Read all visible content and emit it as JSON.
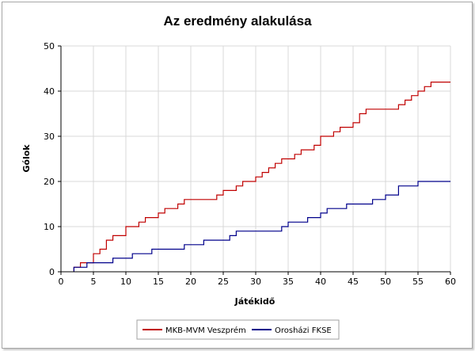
{
  "chart_data": {
    "type": "line",
    "step": true,
    "title": "Az eredmény alakulása",
    "xlabel": "Játékidő",
    "ylabel": "Gólok",
    "xlim": [
      0,
      60
    ],
    "ylim": [
      0,
      50
    ],
    "xticks": [
      0,
      5,
      10,
      15,
      20,
      25,
      30,
      35,
      40,
      45,
      50,
      55,
      60
    ],
    "yticks": [
      0,
      10,
      20,
      30,
      40,
      50
    ],
    "grid": true,
    "legend_position": "bottom",
    "series": [
      {
        "name": "MKB-MVM Veszprém",
        "color": "#c00000",
        "points": [
          [
            2,
            0
          ],
          [
            2,
            1
          ],
          [
            3,
            1
          ],
          [
            3,
            2
          ],
          [
            5,
            2
          ],
          [
            5,
            4
          ],
          [
            6,
            4
          ],
          [
            6,
            5
          ],
          [
            7,
            5
          ],
          [
            7,
            7
          ],
          [
            8,
            7
          ],
          [
            8,
            8
          ],
          [
            10,
            8
          ],
          [
            10,
            10
          ],
          [
            12,
            10
          ],
          [
            12,
            11
          ],
          [
            13,
            11
          ],
          [
            13,
            12
          ],
          [
            15,
            12
          ],
          [
            15,
            13
          ],
          [
            16,
            13
          ],
          [
            16,
            14
          ],
          [
            18,
            14
          ],
          [
            18,
            15
          ],
          [
            19,
            15
          ],
          [
            19,
            16
          ],
          [
            24,
            16
          ],
          [
            24,
            17
          ],
          [
            25,
            17
          ],
          [
            25,
            18
          ],
          [
            27,
            18
          ],
          [
            27,
            19
          ],
          [
            28,
            19
          ],
          [
            28,
            20
          ],
          [
            30,
            20
          ],
          [
            30,
            21
          ],
          [
            31,
            21
          ],
          [
            31,
            22
          ],
          [
            32,
            22
          ],
          [
            32,
            23
          ],
          [
            33,
            23
          ],
          [
            33,
            24
          ],
          [
            34,
            24
          ],
          [
            34,
            25
          ],
          [
            36,
            25
          ],
          [
            36,
            26
          ],
          [
            37,
            26
          ],
          [
            37,
            27
          ],
          [
            39,
            27
          ],
          [
            39,
            28
          ],
          [
            40,
            28
          ],
          [
            40,
            30
          ],
          [
            42,
            30
          ],
          [
            42,
            31
          ],
          [
            43,
            31
          ],
          [
            43,
            32
          ],
          [
            45,
            32
          ],
          [
            45,
            33
          ],
          [
            46,
            33
          ],
          [
            46,
            35
          ],
          [
            47,
            35
          ],
          [
            47,
            36
          ],
          [
            52,
            36
          ],
          [
            52,
            37
          ],
          [
            53,
            37
          ],
          [
            53,
            38
          ],
          [
            54,
            38
          ],
          [
            54,
            39
          ],
          [
            55,
            39
          ],
          [
            55,
            40
          ],
          [
            56,
            40
          ],
          [
            56,
            41
          ],
          [
            57,
            41
          ],
          [
            57,
            42
          ],
          [
            60,
            42
          ]
        ]
      },
      {
        "name": "Orosházi FKSE",
        "color": "#00008b",
        "points": [
          [
            2,
            0
          ],
          [
            2,
            1
          ],
          [
            4,
            1
          ],
          [
            4,
            2
          ],
          [
            8,
            2
          ],
          [
            8,
            3
          ],
          [
            11,
            3
          ],
          [
            11,
            4
          ],
          [
            14,
            4
          ],
          [
            14,
            5
          ],
          [
            19,
            5
          ],
          [
            19,
            6
          ],
          [
            22,
            6
          ],
          [
            22,
            7
          ],
          [
            26,
            7
          ],
          [
            26,
            8
          ],
          [
            27,
            8
          ],
          [
            27,
            9
          ],
          [
            34,
            9
          ],
          [
            34,
            10
          ],
          [
            35,
            10
          ],
          [
            35,
            11
          ],
          [
            38,
            11
          ],
          [
            38,
            12
          ],
          [
            40,
            12
          ],
          [
            40,
            13
          ],
          [
            41,
            13
          ],
          [
            41,
            14
          ],
          [
            44,
            14
          ],
          [
            44,
            15
          ],
          [
            48,
            15
          ],
          [
            48,
            16
          ],
          [
            50,
            16
          ],
          [
            50,
            17
          ],
          [
            52,
            17
          ],
          [
            52,
            19
          ],
          [
            55,
            19
          ],
          [
            55,
            20
          ],
          [
            60,
            20
          ]
        ]
      }
    ]
  }
}
